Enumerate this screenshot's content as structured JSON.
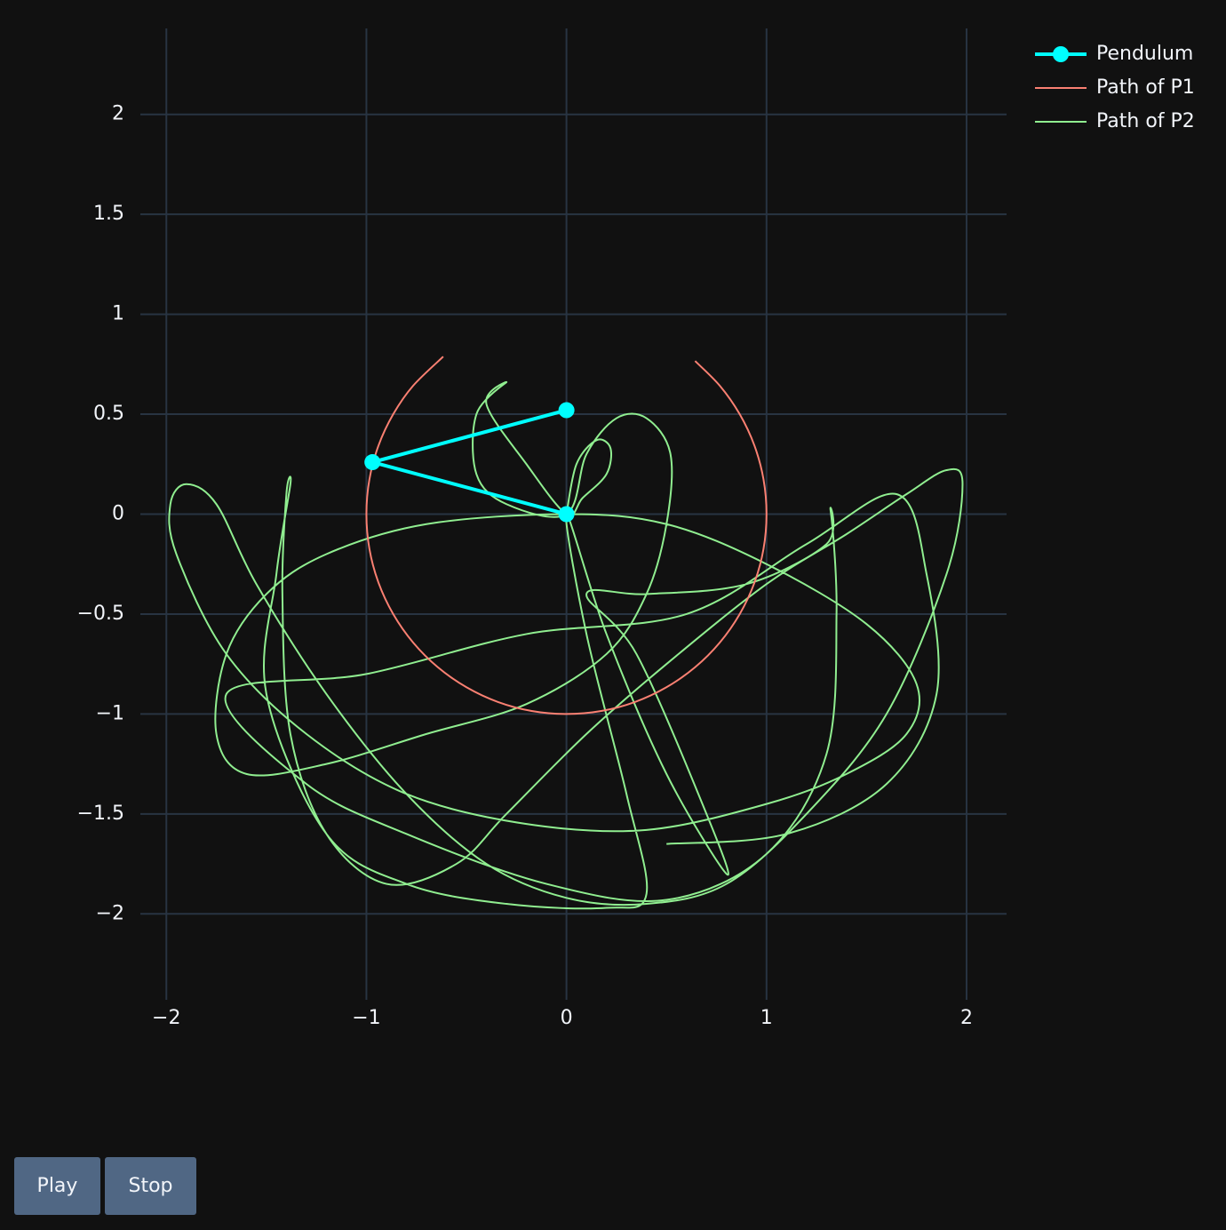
{
  "chart_data": {
    "type": "line",
    "xlim": [
      -2.13,
      2.2
    ],
    "ylim": [
      -2.43,
      2.43
    ],
    "xticks": [
      {
        "value": -2,
        "label": "−2"
      },
      {
        "value": -1,
        "label": "−1"
      },
      0,
      1,
      2
    ],
    "yticks": [
      {
        "value": -2,
        "label": "−2"
      },
      {
        "value": -1.5,
        "label": "−1.5"
      },
      {
        "value": -1,
        "label": "−1"
      },
      {
        "value": -0.5,
        "label": "−0.5"
      },
      0,
      0.5,
      1,
      1.5,
      2
    ],
    "grid": true,
    "legend": "top-right",
    "series": [
      {
        "name": "Pendulum",
        "color": "#00ffff",
        "markers": true,
        "x": [
          0,
          -0.97,
          0
        ],
        "y": [
          0,
          0.26,
          0.52
        ]
      },
      {
        "name": "Path of P1",
        "color": "#fa8072",
        "markers": false,
        "x": [
          -0.616,
          -0.766,
          -0.866,
          -0.94,
          -0.985,
          -1,
          -0.985,
          -0.94,
          -0.866,
          -0.766,
          -0.643,
          -0.5,
          -0.342,
          -0.174,
          0,
          0.174,
          0.342,
          0.5,
          0.643,
          0.766,
          0.866,
          0.94,
          0.985,
          1,
          0.985,
          0.94,
          0.866,
          0.766,
          0.643
        ],
        "y": [
          0.788,
          0.643,
          0.5,
          0.342,
          0.174,
          0,
          -0.174,
          -0.342,
          -0.5,
          -0.643,
          -0.766,
          -0.866,
          -0.94,
          -0.985,
          -1,
          -0.985,
          -0.94,
          -0.866,
          -0.766,
          -0.643,
          -0.5,
          -0.342,
          -0.174,
          0,
          0.174,
          0.342,
          0.5,
          0.643,
          0.766
        ]
      },
      {
        "name": "Path of P2",
        "color": "#90ee90",
        "markers": false,
        "x": [
          0,
          0.05,
          0.15,
          0.22,
          0.2,
          0.08,
          0,
          -0.2,
          -0.4,
          -0.3,
          -0.45,
          -0.45,
          -0.3,
          0,
          0.1,
          0.25,
          0.4,
          0.52,
          0.5,
          0.4,
          0.2,
          -0.2,
          -0.7,
          -1.2,
          -1.6,
          -1.75,
          -1.7,
          -1.5,
          -1.2,
          -0.7,
          0,
          0.5,
          1.0,
          1.5,
          1.75,
          1.7,
          1.4,
          1.0,
          0.4,
          -0.2,
          -0.8,
          -1.3,
          -1.7,
          -1.95,
          -1.98,
          -1.9,
          -1.75,
          -1.55,
          -1.2,
          -0.8,
          -0.4,
          0,
          0.4,
          0.8,
          1.2,
          1.6,
          1.9,
          1.98,
          1.9,
          1.7,
          1.4,
          1.0,
          0.5,
          0.1,
          -0.3,
          -0.55,
          -0.9,
          -1.2,
          -1.38,
          -1.42,
          -1.4,
          -1.38,
          -1.45,
          -1.5,
          -1.2,
          -0.8,
          -0.3,
          0.2,
          0.4,
          0.3,
          0.1,
          0,
          0.2,
          0.5,
          0.8,
          0.7,
          0.35,
          0.1,
          0.4,
          0.9,
          1.3,
          1.32,
          1.35,
          1.3,
          1.0,
          0.5,
          -0.1,
          -0.8,
          -1.3,
          -1.7,
          -1.0,
          -0.2,
          0.6,
          1.2,
          1.65,
          1.8,
          1.85,
          1.6,
          1.1,
          0.5
        ],
        "y": [
          0,
          0.25,
          0.37,
          0.33,
          0.2,
          0.08,
          0,
          0.25,
          0.55,
          0.66,
          0.5,
          0.2,
          0.05,
          0,
          0.3,
          0.48,
          0.48,
          0.3,
          -0.05,
          -0.4,
          -0.7,
          -0.95,
          -1.1,
          -1.25,
          -1.3,
          -1.1,
          -0.7,
          -0.4,
          -0.2,
          -0.05,
          0,
          -0.05,
          -0.25,
          -0.55,
          -0.85,
          -1.1,
          -1.3,
          -1.45,
          -1.58,
          -1.55,
          -1.4,
          -1.1,
          -0.7,
          -0.2,
          0.05,
          0.15,
          0.05,
          -0.35,
          -0.9,
          -1.4,
          -1.75,
          -1.92,
          -1.95,
          -1.85,
          -1.5,
          -1.0,
          -0.3,
          0.15,
          0.22,
          0.1,
          -0.1,
          -0.35,
          -0.75,
          -1.1,
          -1.5,
          -1.75,
          -1.85,
          -1.6,
          -1.1,
          -0.4,
          0.1,
          0.15,
          -0.3,
          -0.9,
          -1.6,
          -1.85,
          -1.95,
          -1.97,
          -1.9,
          -1.4,
          -0.6,
          0,
          -0.6,
          -1.3,
          -1.8,
          -1.5,
          -0.7,
          -0.4,
          -0.4,
          -0.35,
          -0.15,
          0.02,
          -0.5,
          -1.2,
          -1.7,
          -1.93,
          -1.85,
          -1.6,
          -1.35,
          -0.9,
          -0.8,
          -0.6,
          -0.5,
          -0.15,
          0.1,
          -0.3,
          -0.9,
          -1.35,
          -1.6,
          -1.65
        ]
      }
    ]
  },
  "controls": {
    "buttons": [
      "Play",
      "Stop"
    ]
  }
}
